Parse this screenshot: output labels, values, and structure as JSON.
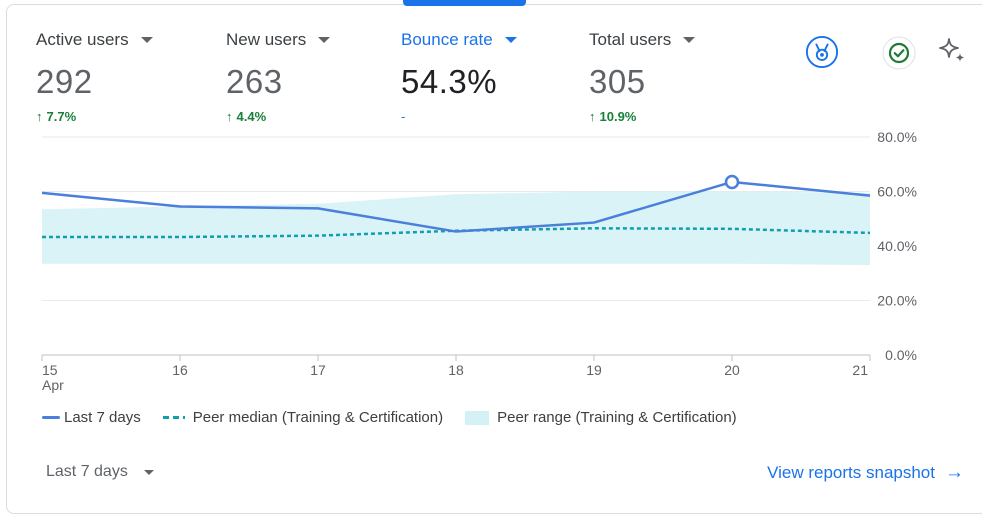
{
  "metrics": [
    {
      "label": "Active users",
      "value": "292",
      "change_arrow": "↑",
      "change": "7.7%"
    },
    {
      "label": "New users",
      "value": "263",
      "change_arrow": "↑",
      "change": "4.4%"
    },
    {
      "label": "Bounce rate",
      "value": "54.3%",
      "change_arrow": "",
      "change": "-",
      "active": true
    },
    {
      "label": "Total users",
      "value": "305",
      "change_arrow": "↑",
      "change": "10.9%"
    }
  ],
  "toolbar_icons": [
    "benchmark-badge-icon",
    "check-circle-icon",
    "sparkle-icon"
  ],
  "colors": {
    "accent": "#1a73e8",
    "positive": "#188038",
    "last7": "#4a7fdb",
    "peer_median": "#129eaf",
    "peer_range": "#d4f1f5"
  },
  "chart_data": {
    "type": "line",
    "x": [
      "15",
      "16",
      "17",
      "18",
      "19",
      "20",
      "21"
    ],
    "x_sublabel_first": "Apr",
    "y_ticks": [
      "80.0%",
      "60.0%",
      "40.0%",
      "20.0%",
      "0.0%"
    ],
    "ylim": [
      0,
      80
    ],
    "grid": true,
    "series": [
      {
        "name": "Last 7 days",
        "values": [
          59.5,
          54.5,
          53.8,
          45.3,
          48.6,
          63.5,
          58.5
        ],
        "highlight_index": 5
      },
      {
        "name": "Peer median (Training & Certification)",
        "values": [
          43.3,
          43.3,
          43.8,
          45.6,
          46.5,
          46.3,
          44.8
        ]
      },
      {
        "name": "Peer range (Training & Certification)",
        "lower": [
          33.5,
          33.5,
          33.5,
          33.5,
          33.5,
          33.5,
          33.0
        ],
        "upper": [
          53.5,
          54.5,
          55.5,
          59.0,
          60.0,
          60.0,
          59.5
        ]
      }
    ]
  },
  "legend": {
    "last7": "Last 7 days",
    "median": "Peer median (Training & Certification)",
    "range": "Peer range (Training & Certification)"
  },
  "footer": {
    "date_range": "Last 7 days",
    "link": "View reports snapshot",
    "link_arrow": "→"
  }
}
